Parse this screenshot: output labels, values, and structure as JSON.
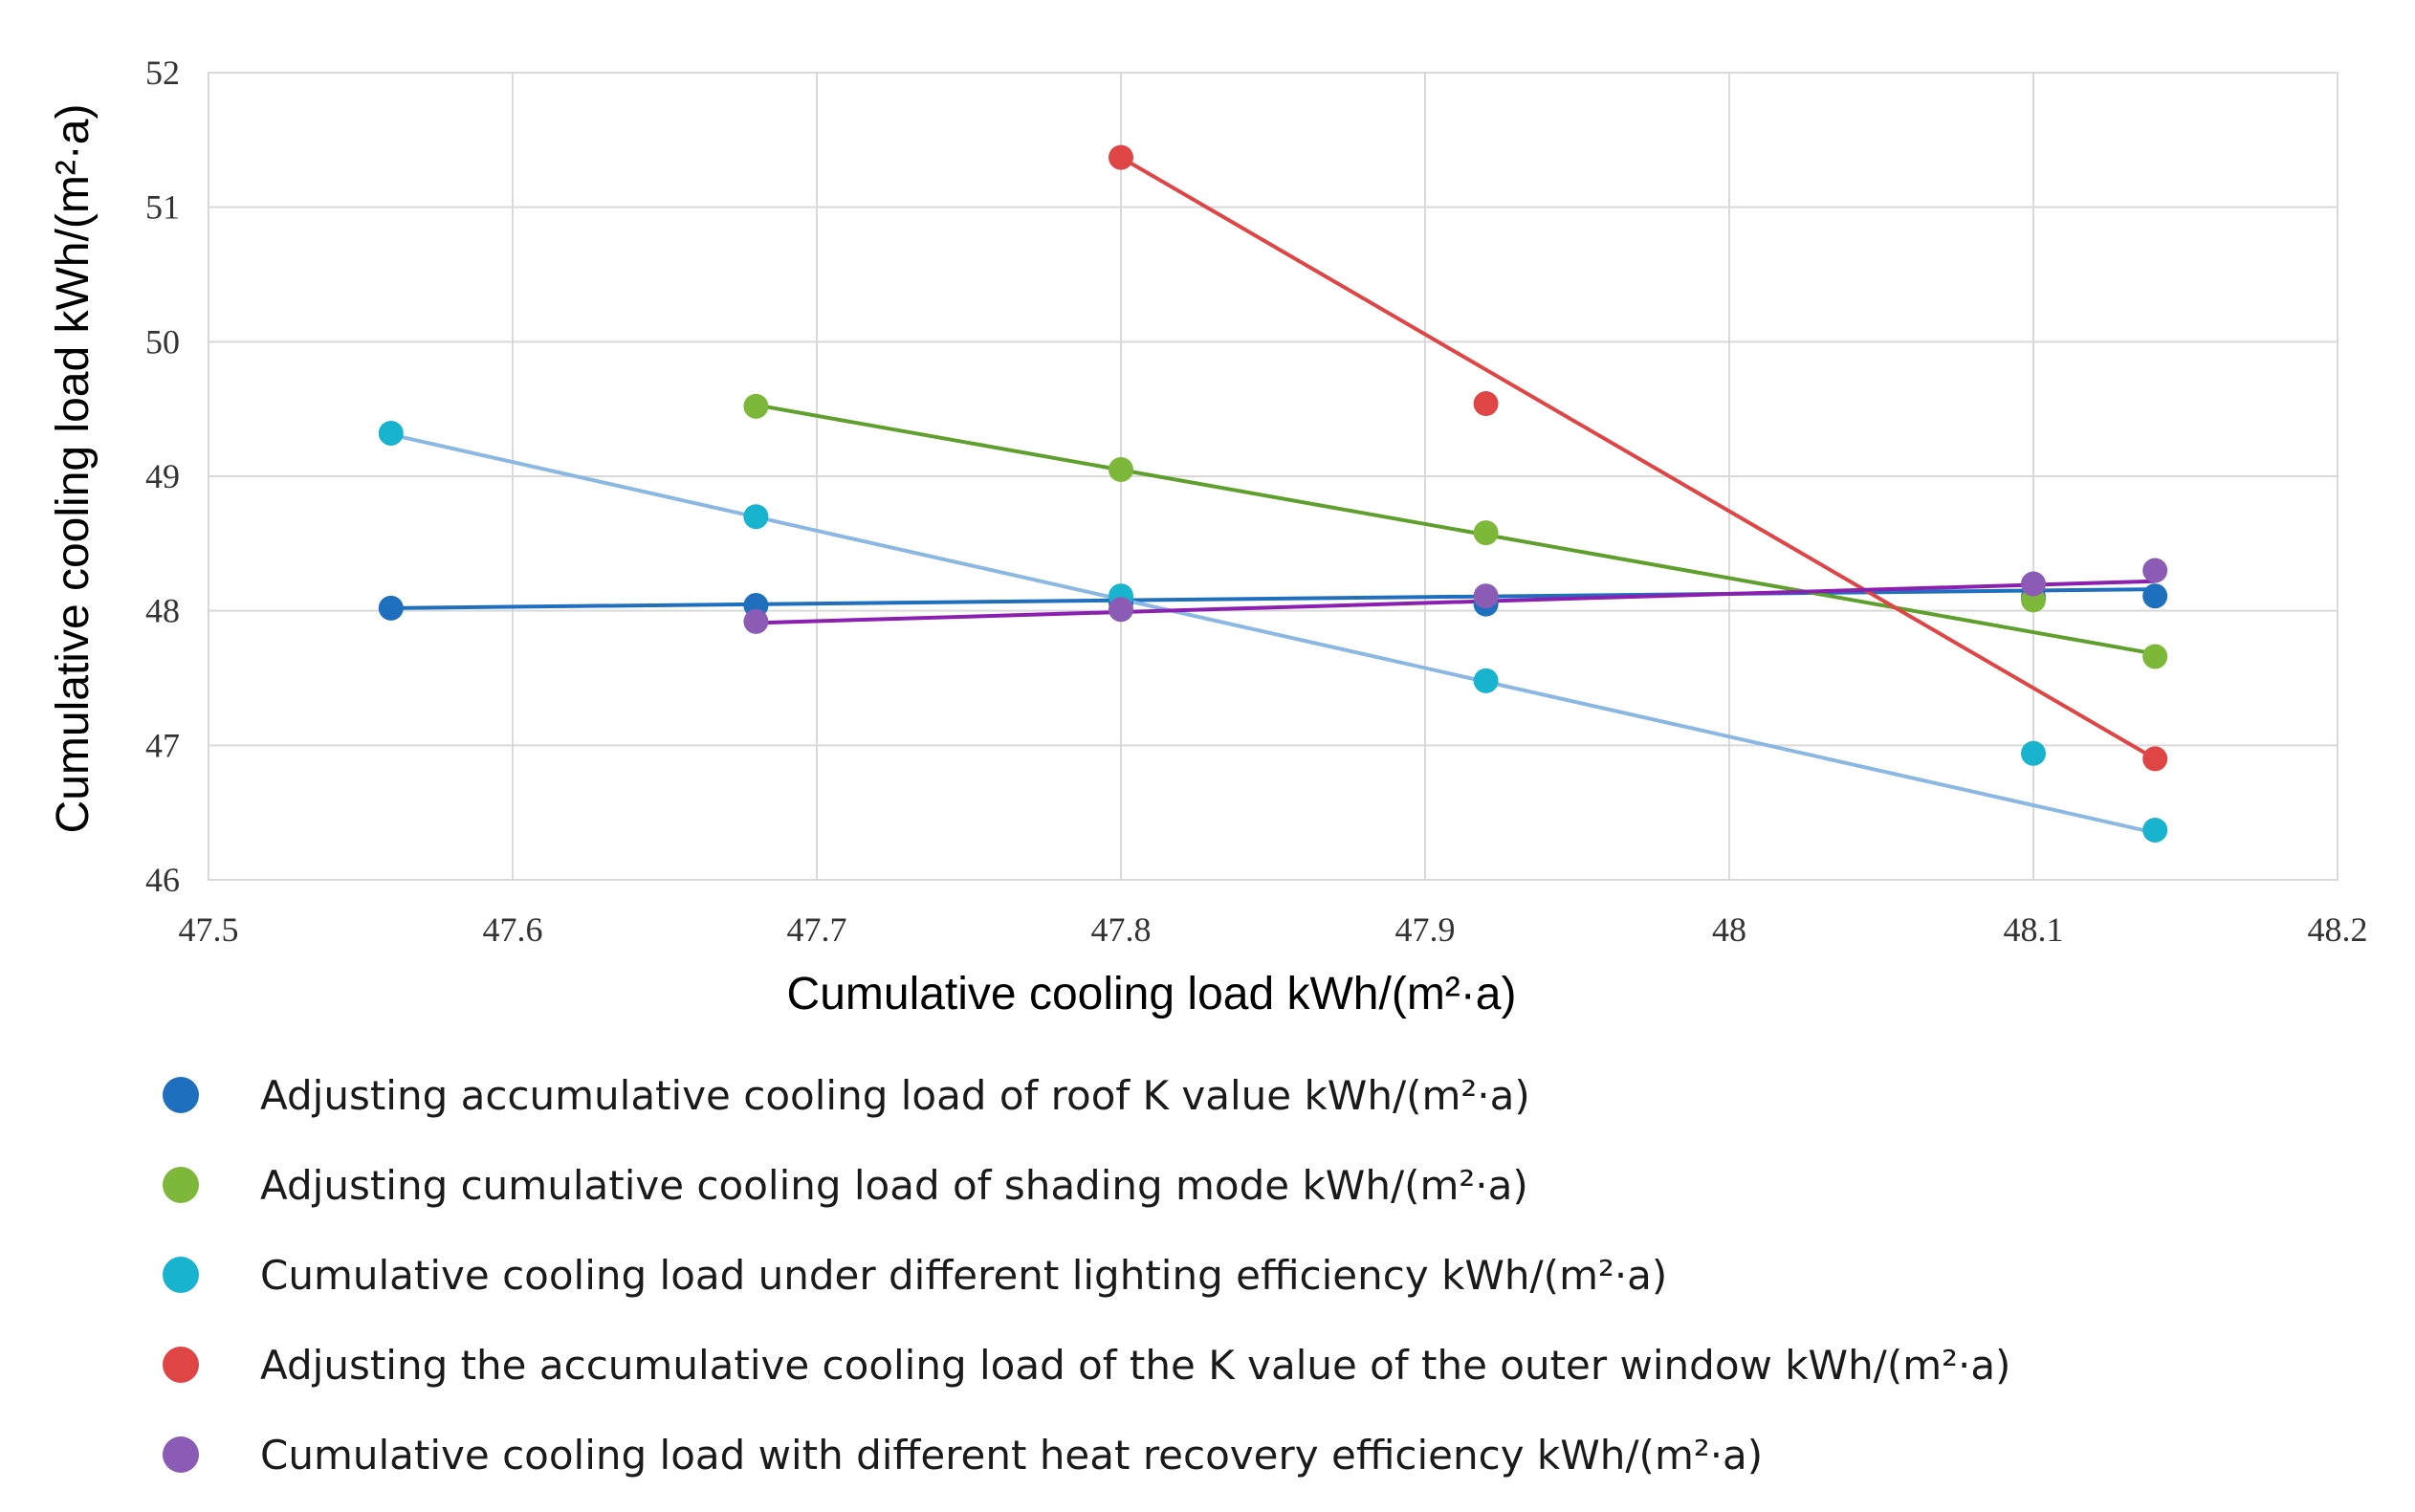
{
  "chart_data": {
    "type": "scatter",
    "title": "",
    "xlabel": "Cumulative cooling load   kWh/(m²·a)",
    "ylabel": "Cumulative cooling load   kWh/(m²·a)",
    "xlim": [
      47.5,
      48.2
    ],
    "ylim": [
      46,
      52
    ],
    "x_ticks": [
      "47.5",
      "47.6",
      "47.7",
      "47.8",
      "47.9",
      "48",
      "48.1",
      "48.2"
    ],
    "y_ticks": [
      "46",
      "47",
      "48",
      "49",
      "50",
      "51",
      "52"
    ],
    "grid": true,
    "legend_position": "bottom",
    "series": [
      {
        "name": "Adjusting accumulative cooling load of roof K value  kWh/(m²·a)",
        "color": "#1f6fbf",
        "line_color": "#1f6fbf",
        "points": [
          [
            47.56,
            48.02
          ],
          [
            47.68,
            48.04
          ],
          [
            47.8,
            48.06
          ],
          [
            47.92,
            48.05
          ],
          [
            48.1,
            48.1
          ],
          [
            48.14,
            48.11
          ]
        ],
        "trend": [
          [
            47.56,
            48.02
          ],
          [
            48.14,
            48.16
          ]
        ]
      },
      {
        "name": "Adjusting cumulative cooling load of shading mode  kWh/(m²·a)",
        "color": "#7db83a",
        "line_color": "#5fa02c",
        "points": [
          [
            47.68,
            49.52
          ],
          [
            47.8,
            49.05
          ],
          [
            47.92,
            48.58
          ],
          [
            48.1,
            48.08
          ],
          [
            48.14,
            47.66
          ]
        ],
        "trend": [
          [
            47.68,
            49.53
          ],
          [
            48.14,
            47.68
          ]
        ]
      },
      {
        "name": "Cumulative cooling load under different lighting efficiency  kWh/(m²·a)",
        "color": "#17b3cf",
        "line_color": "#8bb8e3",
        "points": [
          [
            47.56,
            49.32
          ],
          [
            47.68,
            48.7
          ],
          [
            47.8,
            48.11
          ],
          [
            47.92,
            47.48
          ],
          [
            48.1,
            46.94
          ],
          [
            48.14,
            46.37
          ]
        ],
        "trend": [
          [
            47.56,
            49.31
          ],
          [
            48.14,
            46.35
          ]
        ]
      },
      {
        "name": "Adjusting the accumulative cooling load of the K value of the outer window  kWh/(m²·a)",
        "color": "#e04545",
        "line_color": "#e04545",
        "points": [
          [
            47.8,
            51.37
          ],
          [
            47.92,
            49.54
          ],
          [
            48.14,
            46.9
          ]
        ],
        "trend": [
          [
            47.8,
            51.37
          ],
          [
            48.14,
            46.9
          ]
        ]
      },
      {
        "name": "Cumulative cooling load with different heat recovery efficiency  kWh/(m²·a)",
        "color": "#8c5bb5",
        "line_color": "#8a1fb0",
        "points": [
          [
            47.68,
            47.92
          ],
          [
            47.8,
            48.01
          ],
          [
            47.92,
            48.11
          ],
          [
            48.1,
            48.2
          ],
          [
            48.14,
            48.3
          ]
        ],
        "trend": [
          [
            47.68,
            47.91
          ],
          [
            48.14,
            48.22
          ]
        ]
      }
    ]
  }
}
